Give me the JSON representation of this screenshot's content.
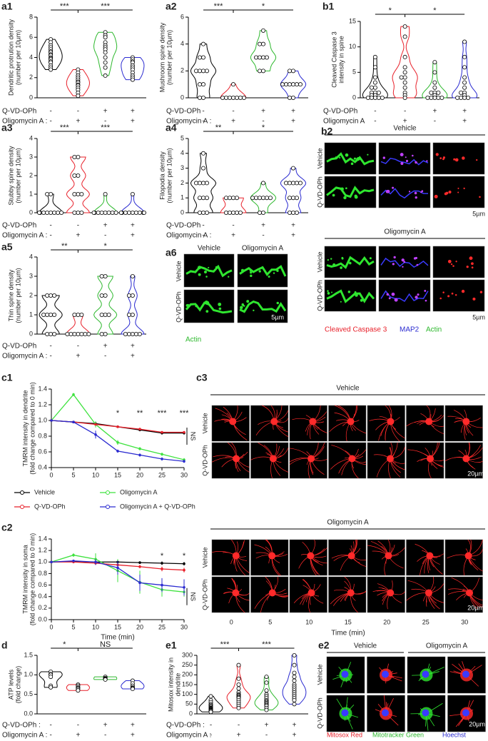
{
  "chart_data": [
    {
      "type": "violin",
      "panel": "a1",
      "ylabel": [
        "Dendritic protrution density",
        "(number per 10µm)"
      ],
      "ylim": [
        0,
        8
      ],
      "yticks": [
        0,
        2,
        4,
        6,
        8
      ],
      "groups": [
        {
          "color": "#000000",
          "values": [
            5.8,
            5.5,
            5.2,
            5,
            4.8,
            4.6,
            4.5,
            4.3,
            4.2,
            4,
            3.9,
            3.8,
            3.6,
            3.5,
            3.2,
            3,
            2.8
          ]
        },
        {
          "color": "#e8202a",
          "values": [
            2.8,
            2.5,
            2.2,
            2,
            1.8,
            1.6,
            1.5,
            1.3,
            1.2,
            1,
            0.8,
            0.5,
            0.2
          ]
        },
        {
          "color": "#2db82d",
          "values": [
            6.5,
            6.2,
            6,
            5.5,
            5.2,
            5,
            4.8,
            4.5,
            4,
            3.5,
            3,
            2.2
          ]
        },
        {
          "color": "#2a2ad0",
          "values": [
            4,
            3.8,
            3.6,
            3.5,
            3.2,
            3,
            2.8,
            2.5,
            2.2,
            2,
            1.8
          ]
        }
      ],
      "significance": [
        "***",
        "***"
      ],
      "conditions": [
        {
          "label": "Q-VD-OPh",
          "signs": [
            "-",
            "-",
            "+",
            "+"
          ]
        },
        {
          "label": "Oligomycin A :",
          "signs": [
            "-",
            "+",
            "-",
            "+"
          ]
        }
      ]
    },
    {
      "type": "violin",
      "panel": "a2",
      "ylabel": [
        "Mushroom spine density",
        "(number per 10µm)"
      ],
      "ylim": [
        0,
        6
      ],
      "yticks": [
        0,
        2,
        4,
        6
      ],
      "groups": [
        {
          "color": "#000000",
          "values": [
            4,
            3,
            3,
            2,
            2,
            2,
            2,
            1,
            1,
            0,
            0
          ]
        },
        {
          "color": "#e8202a",
          "values": [
            1,
            0,
            0,
            0,
            0,
            0,
            0,
            0
          ]
        },
        {
          "color": "#2db82d",
          "values": [
            5,
            4,
            4,
            3,
            3,
            3,
            3,
            2,
            2
          ]
        },
        {
          "color": "#2a2ad0",
          "values": [
            2,
            2,
            1,
            1,
            1,
            1,
            1,
            1,
            0,
            0
          ]
        }
      ],
      "significance": [
        "***",
        "*"
      ],
      "conditions": [
        {
          "label": "Q-VD-OPh",
          "signs": [
            "-",
            "-",
            "+",
            "+"
          ]
        },
        {
          "label": "Oligomycin A :",
          "signs": [
            "-",
            "+",
            "-",
            "+"
          ]
        }
      ]
    },
    {
      "type": "violin",
      "panel": "b1",
      "ylabel": [
        "Cleaved Caspase 3",
        "intensity in spine"
      ],
      "ylim": [
        0,
        15
      ],
      "yticks": [
        0,
        5,
        10,
        15
      ],
      "groups": [
        {
          "color": "#000000",
          "values": [
            8,
            6,
            4,
            3,
            2,
            2,
            1,
            1,
            1,
            0.5,
            0.5,
            0,
            0,
            0,
            0,
            0
          ]
        },
        {
          "color": "#e8202a",
          "values": [
            14,
            12,
            8,
            6,
            5,
            4,
            4,
            3,
            2,
            1,
            0.5,
            0
          ]
        },
        {
          "color": "#2db82d",
          "values": [
            7,
            5,
            3,
            2,
            1,
            1,
            1,
            0.5,
            0,
            0,
            0,
            0,
            0
          ]
        },
        {
          "color": "#2a2ad0",
          "values": [
            11,
            8,
            6,
            4,
            3,
            2,
            1,
            1,
            0.5,
            0,
            0,
            0,
            0
          ]
        }
      ],
      "significance": [
        "*",
        "*"
      ],
      "conditions": [
        {
          "label": "Q-VD-OPh",
          "signs": [
            "-",
            "-",
            "+",
            "+"
          ]
        },
        {
          "label": "Oligomycin A",
          "signs": [
            "-",
            "+",
            "-",
            "+"
          ]
        }
      ]
    },
    {
      "type": "violin",
      "panel": "a3",
      "ylabel": [
        "Stubby spine density",
        "(number per 10µm)"
      ],
      "ylim": [
        0,
        4
      ],
      "yticks": [
        0,
        1,
        2,
        3,
        4
      ],
      "groups": [
        {
          "color": "#000000",
          "values": [
            1,
            1,
            0,
            0,
            0,
            0,
            0,
            0,
            0,
            0
          ]
        },
        {
          "color": "#e8202a",
          "values": [
            3,
            3,
            2,
            2,
            1,
            1,
            1,
            0,
            0,
            0
          ]
        },
        {
          "color": "#2db82d",
          "values": [
            1,
            0,
            0,
            0,
            0,
            0,
            0,
            0,
            0
          ]
        },
        {
          "color": "#2a2ad0",
          "values": [
            1,
            0,
            0,
            0,
            0,
            0,
            0,
            0,
            0,
            0
          ]
        }
      ],
      "significance": [
        "***",
        "***"
      ],
      "conditions": [
        {
          "label": "Q-VD-OPh",
          "signs": [
            "-",
            "-",
            "+",
            "+"
          ]
        },
        {
          "label": "Oligomycin A :",
          "signs": [
            "-",
            "+",
            "-",
            "+"
          ]
        }
      ]
    },
    {
      "type": "violin",
      "panel": "a4",
      "ylabel": [
        "Filopodia density",
        "(number per 10µm)"
      ],
      "ylim": [
        0,
        5
      ],
      "yticks": [
        0,
        1,
        2,
        3,
        4,
        5
      ],
      "groups": [
        {
          "color": "#000000",
          "values": [
            4,
            3,
            2,
            2,
            2,
            2,
            1,
            1,
            1,
            0,
            0,
            0
          ]
        },
        {
          "color": "#e8202a",
          "values": [
            1,
            1,
            1,
            1,
            0,
            0,
            0,
            0,
            0
          ]
        },
        {
          "color": "#2db82d",
          "values": [
            2,
            1,
            1,
            1,
            1,
            1,
            1,
            0,
            0
          ]
        },
        {
          "color": "#2a2ad0",
          "values": [
            3,
            2,
            2,
            2,
            2,
            2,
            1,
            1,
            1,
            0,
            0,
            0
          ]
        }
      ],
      "significance": [
        "**",
        "*"
      ],
      "conditions": [
        {
          "label": "Q-VD-OPh",
          "signs": [
            "-",
            "-",
            "+",
            "+"
          ]
        },
        {
          "label": "Oligomycin A :",
          "signs": [
            "-",
            "+",
            "-",
            "+"
          ]
        }
      ]
    },
    {
      "type": "violin",
      "panel": "a5",
      "ylabel": [
        "Thin spine density",
        "(number per 10µm)"
      ],
      "ylim": [
        0,
        4
      ],
      "yticks": [
        0,
        1,
        2,
        3,
        4
      ],
      "groups": [
        {
          "color": "#000000",
          "values": [
            2,
            2,
            2,
            1,
            1,
            1,
            1,
            0,
            0,
            0
          ]
        },
        {
          "color": "#e8202a",
          "values": [
            1,
            1,
            1,
            0,
            0,
            0,
            0,
            0,
            0,
            0
          ]
        },
        {
          "color": "#2db82d",
          "values": [
            3,
            3,
            2,
            2,
            1,
            1,
            1,
            0,
            0
          ]
        },
        {
          "color": "#2a2ad0",
          "values": [
            3,
            2,
            2,
            1,
            1,
            0,
            0,
            0,
            0,
            0
          ]
        }
      ],
      "significance": [
        "**",
        "*"
      ],
      "conditions": [
        {
          "label": "Q-VD-OPh",
          "signs": [
            "-",
            "-",
            "+",
            "+"
          ]
        },
        {
          "label": "Oligomycin A :",
          "signs": [
            "-",
            "+",
            "-",
            "+"
          ]
        }
      ]
    },
    {
      "type": "violin",
      "panel": "d",
      "ylabel": [
        "ATP levels",
        "(fold change)"
      ],
      "ylim": [
        0,
        1.5
      ],
      "yticks": [
        {
          "value": 0,
          "label": "0.0"
        },
        0.5,
        {
          "value": 1,
          "label": "1.0"
        },
        1.5
      ],
      "groups": [
        {
          "color": "#000000",
          "values": [
            1.08,
            1.02,
            1.0,
            0.95,
            0.72,
            0.68
          ]
        },
        {
          "color": "#e8202a",
          "values": [
            0.75,
            0.72,
            0.68,
            0.66,
            0.63,
            0.6
          ]
        },
        {
          "color": "#2db82d",
          "values": [
            0.95,
            0.92,
            0.9,
            0.89,
            0.88
          ]
        },
        {
          "color": "#2a2ad0",
          "values": [
            0.85,
            0.78,
            0.72,
            0.68,
            0.66,
            0.64
          ]
        }
      ],
      "significance": [
        "*",
        "NS"
      ],
      "conditions": [
        {
          "label": "Q-VD-OPh :",
          "signs": [
            "-",
            "-",
            "+",
            "+"
          ]
        },
        {
          "label": "Oligomycin A :",
          "signs": [
            "-",
            "+",
            "-",
            "+"
          ]
        }
      ]
    },
    {
      "type": "violin",
      "panel": "e1",
      "ylabel": [
        "Mitosox intensity in",
        "dendrite"
      ],
      "ylim": [
        0,
        300
      ],
      "yticks": [
        0,
        50,
        100,
        150,
        200,
        250,
        300
      ],
      "groups": [
        {
          "color": "#000000",
          "values": [
            90,
            70,
            60,
            50,
            45,
            40,
            35,
            30,
            28,
            25,
            22,
            20,
            18,
            15,
            10
          ]
        },
        {
          "color": "#e8202a",
          "values": [
            250,
            180,
            150,
            130,
            110,
            100,
            95,
            90,
            85,
            80,
            70,
            60,
            50,
            40,
            30
          ]
        },
        {
          "color": "#2db82d",
          "values": [
            190,
            160,
            120,
            100,
            90,
            80,
            70,
            65,
            60,
            55,
            50,
            45,
            40,
            30,
            20
          ]
        },
        {
          "color": "#2a2ad0",
          "values": [
            300,
            250,
            210,
            190,
            170,
            150,
            140,
            130,
            120,
            110,
            100,
            90,
            80,
            70,
            50
          ]
        }
      ],
      "significance": [
        "***",
        "***"
      ],
      "conditions": [
        {
          "label": "Q-VD-OPh :",
          "signs": [
            "-",
            "-",
            "+",
            "+"
          ]
        },
        {
          "label": "Oligomycin A :",
          "signs": [
            "-",
            "+",
            "-",
            "+"
          ]
        }
      ]
    },
    {
      "type": "line",
      "panel": "c1",
      "ylabel": [
        "TMRM intensity in dendrite",
        "(fold change compared to 0 min)"
      ],
      "x": [
        0,
        5,
        10,
        15,
        20,
        25,
        30
      ],
      "xlim": [
        0,
        30
      ],
      "xticks": [
        0,
        5,
        10,
        15,
        20,
        25,
        30
      ],
      "ylim": [
        0.4,
        1.4
      ],
      "yticks": [
        0.4,
        0.6,
        0.8,
        {
          "value": 1.0,
          "label": "1.0"
        },
        1.2,
        1.4
      ],
      "series": [
        {
          "name": "Vehicle",
          "color": "#000000",
          "values": [
            1,
            0.98,
            0.96,
            0.92,
            0.88,
            0.84,
            0.84
          ],
          "errors": [
            0,
            0.01,
            0.01,
            0.01,
            0.01,
            0.02,
            0.02
          ]
        },
        {
          "name": "Oligomycin A",
          "color": "#3ee23e",
          "values": [
            1,
            1.33,
            0.95,
            0.72,
            0.64,
            0.57,
            0.5
          ],
          "errors": [
            0,
            0.02,
            0.04,
            0.03,
            0.02,
            0.02,
            0.02
          ]
        },
        {
          "name": "Q-VD-OPh",
          "color": "#e8202a",
          "values": [
            1,
            0.98,
            0.95,
            0.92,
            0.89,
            0.85,
            0.85
          ],
          "errors": [
            0,
            0.01,
            0.01,
            0.01,
            0.01,
            0.01,
            0.01
          ]
        },
        {
          "name": "Oligomycin A + Q-VD-OPh",
          "color": "#2a2ad0",
          "values": [
            1,
            0.98,
            0.82,
            0.61,
            0.56,
            0.51,
            0.48
          ],
          "errors": [
            0,
            0.01,
            0.05,
            0.02,
            0.02,
            0.02,
            0.02
          ]
        }
      ],
      "significance": {
        "x": [
          15,
          20,
          25,
          30
        ],
        "labels": [
          "*",
          "**",
          "***",
          "***"
        ]
      },
      "side_note": "NS"
    },
    {
      "type": "line",
      "panel": "c2",
      "ylabel": [
        "TMRM intensity in soma",
        "(fold change compared to 0 min)"
      ],
      "xlabel": "Time (min)",
      "x": [
        0,
        5,
        10,
        15,
        20,
        25,
        30
      ],
      "xlim": [
        0,
        30
      ],
      "xticks": [
        0,
        5,
        10,
        15,
        20,
        25,
        30
      ],
      "ylim": [
        0,
        1.4
      ],
      "yticks": [
        {
          "value": 0,
          "label": "0.0"
        },
        0.2,
        0.4,
        0.6,
        0.8,
        {
          "value": 1.0,
          "label": "1.0"
        },
        1.2,
        1.4
      ],
      "series": [
        {
          "color": "#000000",
          "values": [
            1,
            1.01,
            1.0,
            1.0,
            0.99,
            0.98,
            0.97
          ],
          "errors": [
            0,
            0.01,
            0.02,
            0.02,
            0.02,
            0.03,
            0.03
          ]
        },
        {
          "color": "#3ee23e",
          "values": [
            1,
            1.12,
            1.05,
            0.85,
            0.65,
            0.52,
            0.48
          ],
          "errors": [
            0,
            0.03,
            0.1,
            0.2,
            0.2,
            0.12,
            0.08
          ]
        },
        {
          "color": "#e8202a",
          "values": [
            1,
            1.0,
            0.98,
            0.95,
            0.92,
            0.88,
            0.86
          ],
          "errors": [
            0,
            0.02,
            0.03,
            0.03,
            0.03,
            0.04,
            0.04
          ]
        },
        {
          "color": "#2a2ad0",
          "values": [
            1,
            1.02,
            1.0,
            0.9,
            0.64,
            0.6,
            0.56
          ],
          "errors": [
            0,
            0.02,
            0.05,
            0.12,
            0.14,
            0.12,
            0.14
          ]
        }
      ],
      "significance": {
        "x": [
          25,
          30
        ],
        "labels": [
          "*",
          "*"
        ]
      },
      "side_note": "NS"
    }
  ],
  "image_panels": {
    "a6": {
      "panel": "a6",
      "columns": [
        "Vehicle",
        "Oligomycin A"
      ],
      "rows": [
        "Vehicle",
        "Q-VD-OPh"
      ],
      "scale": "5µm",
      "stain": "Actin"
    },
    "b2": {
      "panel": "b2",
      "groups": [
        "Vehicle",
        "Oligomycin A"
      ],
      "rows": [
        "Vehicle",
        "Q-VD-OPh"
      ],
      "scale": "5µm",
      "stains": [
        "Cleaved Caspase 3",
        "MAP2",
        "Actin"
      ]
    },
    "c3": {
      "panel": "c3",
      "groups": [
        "Vehicle",
        "Oligomycin A"
      ],
      "rows": [
        "Vehicle",
        "Q-VD-OPh"
      ],
      "times": [
        0,
        5,
        10,
        15,
        20,
        25,
        30
      ],
      "xlabel": "Time (min)",
      "scale": "20µm"
    },
    "e2": {
      "panel": "e2",
      "columns": [
        "Vehicle",
        "Oligomycin A"
      ],
      "rows": [
        "Vehicle",
        "Q-VD-OPh"
      ],
      "scale": "20µm",
      "stains": [
        "Mitosox Red",
        "Mitotracker Green",
        "Hoechst"
      ]
    }
  }
}
